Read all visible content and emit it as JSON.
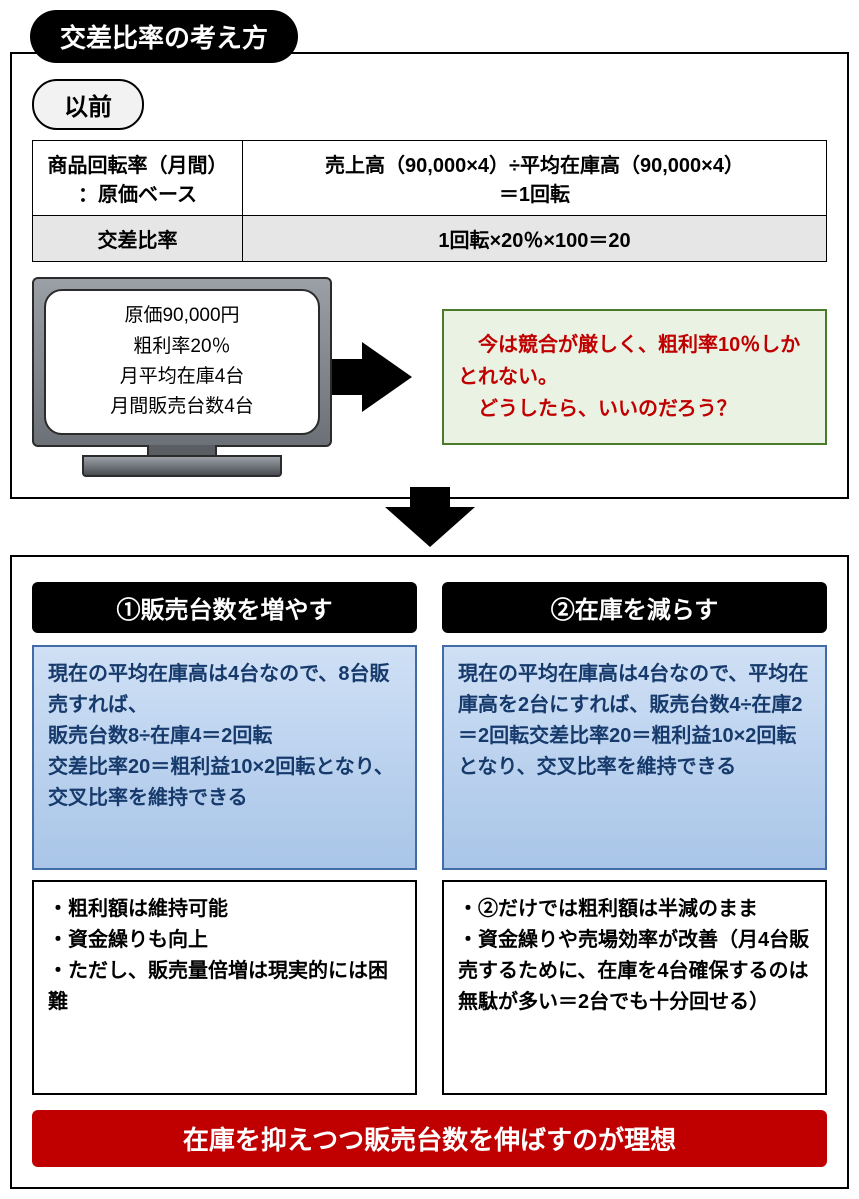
{
  "title": "交差比率の考え方",
  "before": {
    "label": "以前",
    "table": {
      "r1c1": "商品回転率（月間）\n：原価ベース",
      "r1c2": "売上高（90,000×4）÷平均在庫高（90,000×4）\n＝1回転",
      "r2c1": "交差比率",
      "r2c2": "1回転×20％×100＝20"
    },
    "tv": {
      "line1": "原価90,000円",
      "line2": "粗利率20％",
      "line3": "月平均在庫4台",
      "line4": "月間販売台数4台"
    },
    "note": "　今は競合が厳しく、粗利率10％しかとれない。\n　どうしたら、いいのだろう？"
  },
  "options": {
    "opt1": {
      "title": "①販売台数を増やす",
      "blue": "現在の平均在庫高は4台なので、8台販売すれば、\n販売台数8÷在庫4＝2回転\n交差比率20＝粗利益10×2回転となり、交叉比率を維持できる",
      "white": "・粗利額は維持可能\n・資金繰りも向上\n・ただし、販売量倍増は現実的には困難"
    },
    "opt2": {
      "title": "②在庫を減らす",
      "blue": "現在の平均在庫高は4台なので、平均在庫高を2台にすれば、販売台数4÷在庫2＝2回転交差比率20＝粗利益10×2回転となり、交叉比率を維持できる",
      "white": "・②だけでは粗利額は半減のまま\n・資金繰りや売場効率が改善（月4台販売するために、在庫を4台確保するのは無駄が多い＝2台でも十分回せる）"
    }
  },
  "conclusion": "在庫を抑えつつ販売台数を伸ばすのが理想",
  "colors": {
    "title_bg": "#000000",
    "title_fg": "#ffffff",
    "note_border": "#4a7b2a",
    "note_bg": "#eaf3e3",
    "note_fg": "#c00000",
    "blue_border": "#426ca8",
    "blue_bg_top": "#cfe0f5",
    "blue_bg_bot": "#a9c5e8",
    "blue_fg": "#163a6b",
    "red_bar": "#c00000",
    "grey_cell": "#e6e6e6"
  }
}
